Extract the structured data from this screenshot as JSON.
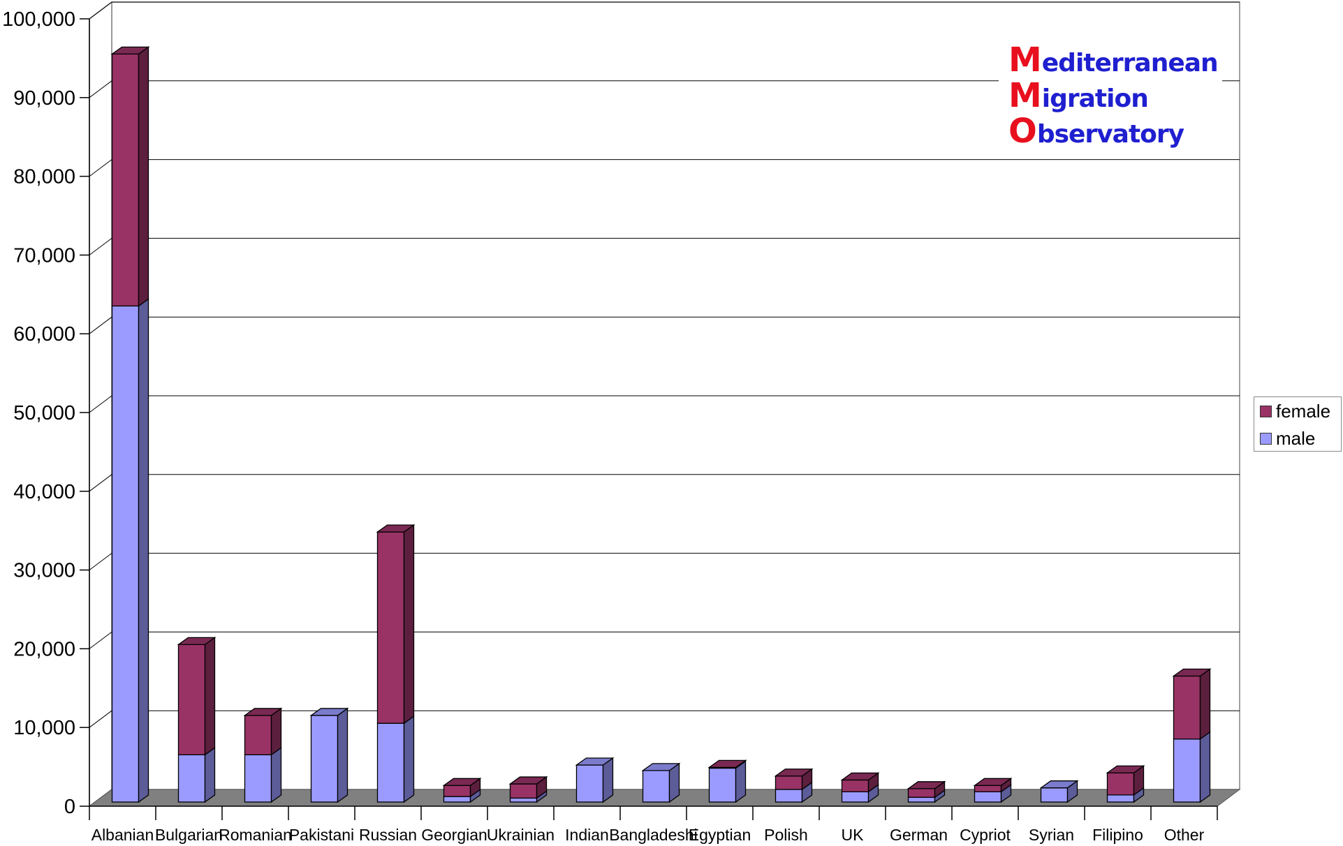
{
  "chart_data": {
    "type": "bar",
    "stacked": true,
    "style": "3d",
    "categories": [
      "Albanian",
      "Bulgarian",
      "Romanian",
      "Pakistani",
      "Russian",
      "Georgian",
      "Ukrainian",
      "Indian",
      "Bangladeshi",
      "Egyptian",
      "Polish",
      "UK",
      "German",
      "Cypriot",
      "Syrian",
      "Filipino",
      "Other"
    ],
    "series": [
      {
        "name": "male",
        "color": "#9b9bff",
        "values": [
          63000,
          6000,
          6000,
          11000,
          10000,
          700,
          500,
          4700,
          4000,
          4300,
          1600,
          1300,
          600,
          1300,
          1800,
          900,
          8000
        ]
      },
      {
        "name": "female",
        "color": "#993366",
        "values": [
          32000,
          14000,
          5000,
          0,
          24300,
          1400,
          1800,
          0,
          0,
          100,
          1700,
          1500,
          1100,
          800,
          0,
          2800,
          8000
        ]
      }
    ],
    "title": "",
    "xlabel": "",
    "ylabel": "",
    "ylim": [
      0,
      100000
    ],
    "yticks": [
      "0",
      "10,000",
      "20,000",
      "30,000",
      "40,000",
      "50,000",
      "60,000",
      "70,000",
      "80,000",
      "90,000",
      "100,000"
    ],
    "grid": true,
    "legend_position": "right",
    "legend_order": [
      "female",
      "male"
    ]
  },
  "logo": {
    "lines": [
      {
        "initial": "M",
        "rest": "editerranean"
      },
      {
        "initial": "M",
        "rest": "igration"
      },
      {
        "initial": "O",
        "rest": "bservatory"
      }
    ]
  },
  "colors": {
    "floor": "#808080",
    "male_side": "#5c5c99",
    "female_side": "#5c1f3d",
    "male_top": "#7b7bcc",
    "female_top": "#7a2952",
    "grid": "#000000"
  }
}
